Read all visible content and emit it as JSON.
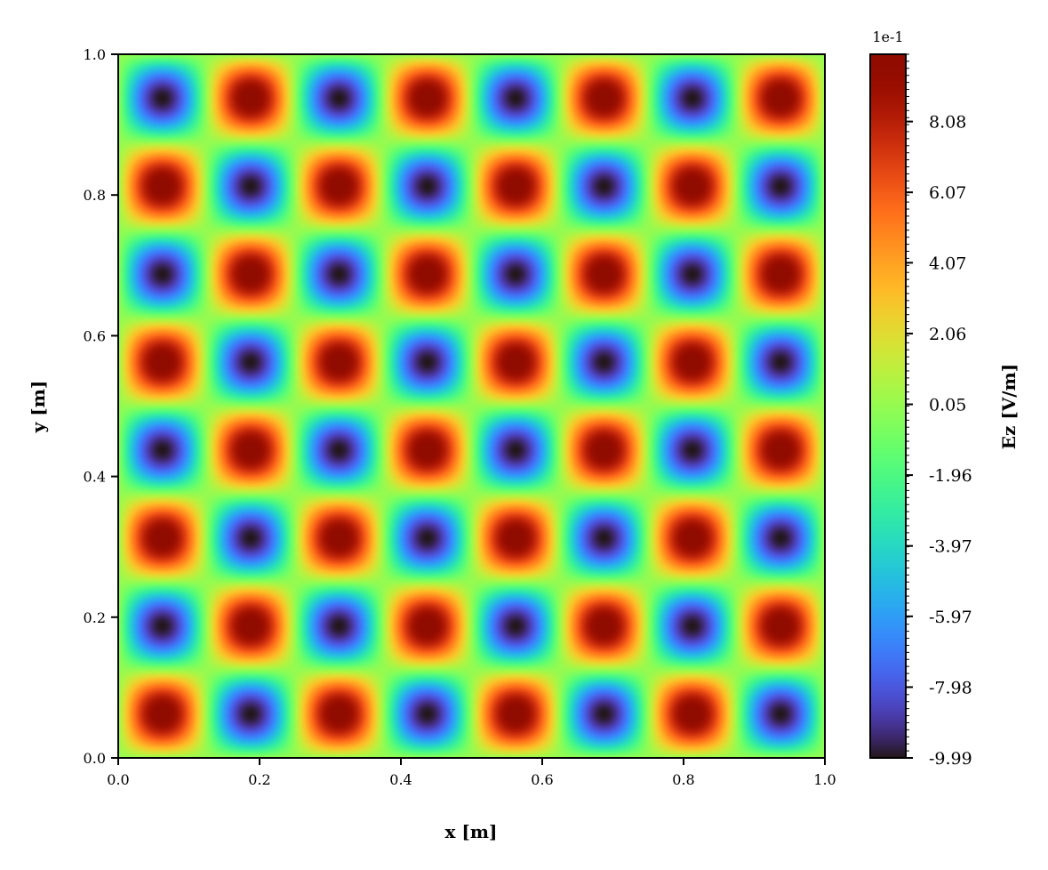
{
  "chart_data": {
    "type": "heatmap",
    "title": "",
    "xlabel": "x [m]",
    "ylabel": "y [m]",
    "xlim": [
      0.0,
      1.0
    ],
    "ylim": [
      0.0,
      1.0
    ],
    "x_ticks": [
      "0.0",
      "0.2",
      "0.4",
      "0.6",
      "0.8",
      "1.0"
    ],
    "y_ticks": [
      "0.0",
      "0.2",
      "0.4",
      "0.6",
      "0.8",
      "1.0"
    ],
    "grid_cells": [
      8,
      8
    ],
    "field": "sin(8*pi*x)*sin(8*pi*y) (checkerboard of standing-wave peaks)",
    "colormap": "turbo",
    "colorbar": {
      "label": "Ez [V/m]",
      "offset_text": "1e-1",
      "range": [
        -9.99,
        9.99
      ],
      "ticks": [
        "-9.99",
        "-7.98",
        "-5.97",
        "-3.97",
        "-1.96",
        "0.05",
        "2.06",
        "4.07",
        "6.07",
        "8.08"
      ]
    },
    "grid": false
  }
}
